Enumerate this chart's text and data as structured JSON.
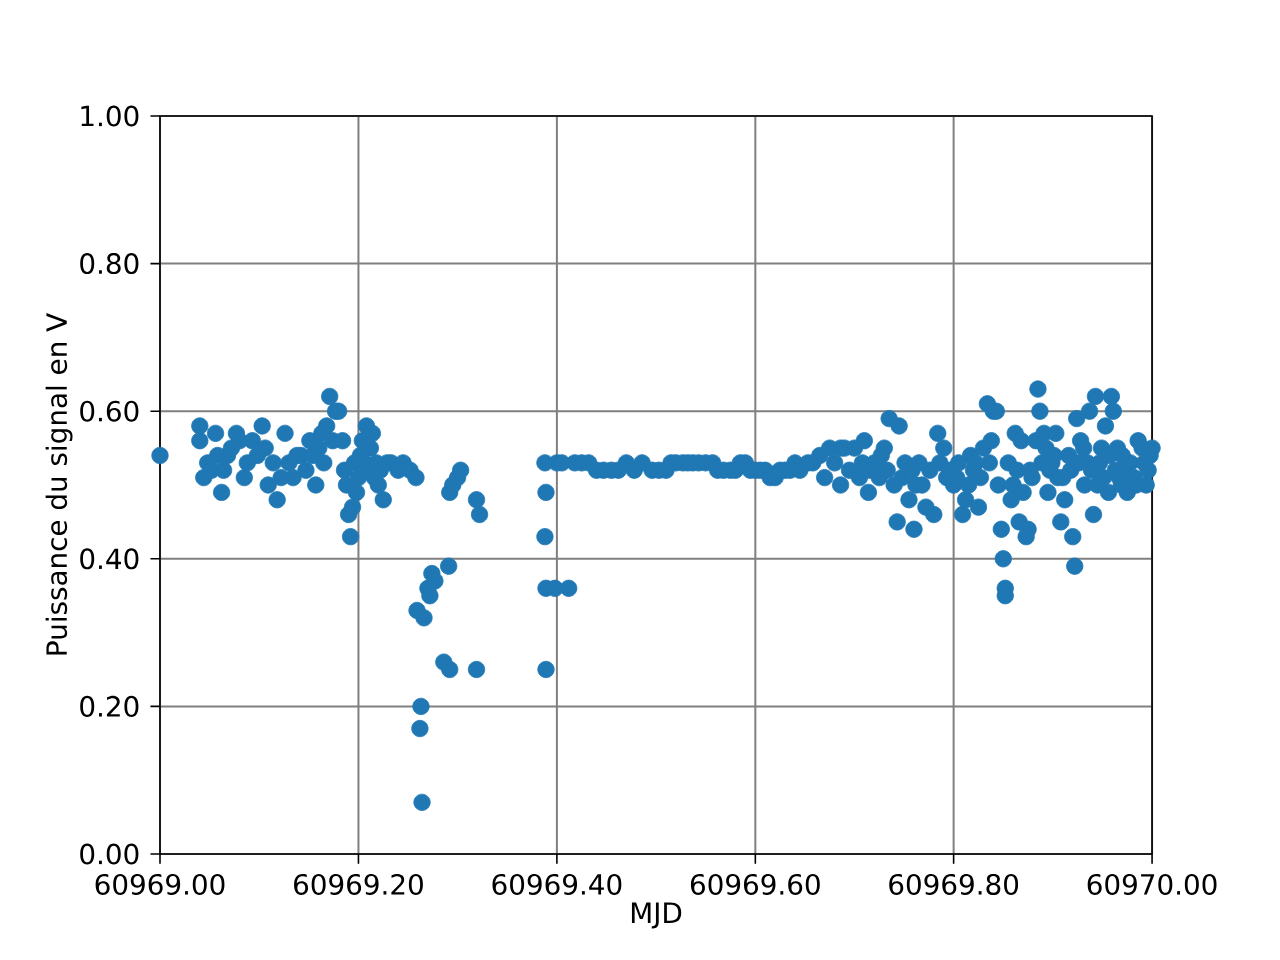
{
  "chart_data": {
    "type": "scatter",
    "xlabel": "MJD",
    "ylabel": "Puissance du signal en V",
    "x": [
      60969.0,
      60969.04,
      60969.04,
      60969.044,
      60969.048,
      60969.052,
      60969.056,
      60969.062,
      60969.068,
      60969.072,
      60969.077,
      60969.085,
      60969.093,
      60969.098,
      60969.103,
      60969.109,
      60969.114,
      60969.118,
      60969.122,
      60969.126,
      60969.134,
      60969.138,
      60969.142,
      60969.147,
      60969.151,
      60969.157,
      60969.163,
      60969.168,
      60969.171,
      60969.174,
      60969.177,
      60969.18,
      60969.184,
      60969.186,
      60969.188,
      60969.19,
      60969.192,
      60969.194,
      60969.196,
      60969.2,
      60969.204,
      60969.208,
      60969.212,
      60969.216,
      60969.22,
      60969.225,
      60969.229,
      60969.233,
      60969.24,
      60969.245,
      60969.252,
      60969.258,
      60969.259,
      60969.262,
      60969.263,
      60969.264,
      60969.266,
      60969.27,
      60969.272,
      60969.274,
      60969.277,
      60969.286,
      60969.291,
      60969.292,
      60969.292,
      60969.295,
      60969.3,
      60969.303,
      60969.319,
      60969.319,
      60969.322,
      60969.388,
      60969.389,
      60969.388,
      60969.389,
      60969.389,
      60969.398,
      60969.4,
      60969.412,
      60969.418,
      60969.425,
      60969.44,
      60969.455,
      60969.47,
      60969.496,
      60969.51,
      60969.52,
      60969.537,
      60969.55,
      60969.562,
      60969.575,
      60969.585,
      60969.595,
      60969.61,
      60969.62,
      60969.63,
      60969.64,
      60969.653,
      60969.665,
      60969.67,
      60969.675,
      60969.686,
      60969.686,
      60969.695,
      60969.7,
      60969.705,
      60969.71,
      60969.714,
      60969.72,
      60969.725,
      60969.73,
      60969.735,
      60969.74,
      60969.743,
      60969.745,
      60969.751,
      60969.755,
      60969.76,
      60969.765,
      60969.768,
      60969.772,
      60969.776,
      60969.78,
      60969.784,
      60969.79,
      60969.793,
      60969.8,
      60969.805,
      60969.809,
      60969.812,
      60969.817,
      60969.82,
      60969.825,
      60969.83,
      60969.834,
      60969.838,
      60969.84,
      60969.843,
      60969.845,
      60969.848,
      60969.85,
      60969.852,
      60969.852,
      60969.855,
      60969.858,
      60969.86,
      60969.862,
      60969.866,
      60969.868,
      60969.87,
      60969.873,
      60969.875,
      60969.879,
      60969.883,
      60969.885,
      60969.887,
      60969.891,
      60969.893,
      60969.895,
      60969.899,
      60969.903,
      60969.905,
      60969.908,
      60969.912,
      60969.916,
      60969.918,
      60969.92,
      60969.922,
      60969.924,
      60969.928,
      60969.932,
      60969.935,
      60969.937,
      60969.941,
      60969.943,
      60969.945,
      60969.949,
      60969.953,
      60969.956,
      60969.959,
      60969.961,
      60969.965,
      60969.969,
      60969.972,
      60969.975,
      60969.978,
      60969.982,
      60969.986,
      60969.99,
      60969.994,
      60969.996,
      60969.998,
      60970.0,
      60969.405,
      60969.432,
      60969.447,
      60969.462,
      60969.478,
      60969.486,
      60969.503,
      60969.515,
      60969.527,
      60969.532,
      60969.543,
      60969.557,
      60969.568,
      60969.58,
      60969.59,
      60969.6,
      60969.605,
      60969.615,
      60969.625,
      60969.635,
      60969.645,
      60969.658,
      60969.058,
      60969.064,
      60969.08,
      60969.088,
      60969.106,
      60969.13,
      60969.154,
      60969.16,
      60969.165,
      60969.198,
      60969.202,
      60969.206,
      60969.21,
      60969.214,
      60969.218,
      60969.222,
      60969.68,
      60969.69,
      60969.708,
      60969.716,
      60969.727,
      60969.733,
      60969.748,
      60969.758,
      60969.762,
      60969.786,
      60969.796,
      60969.803,
      60969.815,
      60969.822,
      60969.827,
      60969.836,
      60969.864,
      60969.877,
      60969.889,
      60969.897,
      60969.901,
      60969.91,
      60969.926,
      60969.931,
      60969.939,
      60969.947,
      60969.951,
      60969.957,
      60969.963,
      60969.967,
      60969.97,
      60969.984,
      60969.992
    ],
    "values": [
      0.54,
      0.58,
      0.56,
      0.51,
      0.53,
      0.52,
      0.57,
      0.49,
      0.54,
      0.55,
      0.57,
      0.51,
      0.56,
      0.54,
      0.58,
      0.5,
      0.53,
      0.48,
      0.51,
      0.57,
      0.51,
      0.54,
      0.54,
      0.52,
      0.56,
      0.5,
      0.57,
      0.58,
      0.62,
      0.56,
      0.6,
      0.6,
      0.56,
      0.52,
      0.5,
      0.46,
      0.43,
      0.47,
      0.53,
      0.51,
      0.56,
      0.58,
      0.55,
      0.51,
      0.5,
      0.48,
      0.53,
      0.53,
      0.52,
      0.53,
      0.52,
      0.51,
      0.33,
      0.17,
      0.2,
      0.07,
      0.32,
      0.36,
      0.35,
      0.38,
      0.37,
      0.26,
      0.39,
      0.49,
      0.25,
      0.5,
      0.51,
      0.52,
      0.25,
      0.48,
      0.46,
      0.53,
      0.49,
      0.43,
      0.36,
      0.25,
      0.36,
      0.53,
      0.36,
      0.53,
      0.53,
      0.52,
      0.52,
      0.53,
      0.52,
      0.52,
      0.53,
      0.53,
      0.53,
      0.52,
      0.52,
      0.53,
      0.52,
      0.52,
      0.51,
      0.52,
      0.53,
      0.53,
      0.54,
      0.51,
      0.55,
      0.55,
      0.5,
      0.52,
      0.55,
      0.51,
      0.56,
      0.49,
      0.53,
      0.51,
      0.55,
      0.59,
      0.5,
      0.45,
      0.58,
      0.53,
      0.48,
      0.44,
      0.53,
      0.5,
      0.47,
      0.52,
      0.46,
      0.57,
      0.55,
      0.51,
      0.5,
      0.53,
      0.46,
      0.48,
      0.54,
      0.52,
      0.47,
      0.55,
      0.61,
      0.56,
      0.6,
      0.6,
      0.5,
      0.44,
      0.4,
      0.36,
      0.35,
      0.53,
      0.48,
      0.5,
      0.57,
      0.45,
      0.56,
      0.49,
      0.43,
      0.44,
      0.51,
      0.56,
      0.63,
      0.6,
      0.57,
      0.55,
      0.49,
      0.53,
      0.57,
      0.51,
      0.45,
      0.48,
      0.54,
      0.52,
      0.43,
      0.39,
      0.59,
      0.56,
      0.5,
      0.53,
      0.6,
      0.46,
      0.62,
      0.5,
      0.55,
      0.58,
      0.49,
      0.62,
      0.6,
      0.55,
      0.5,
      0.52,
      0.49,
      0.53,
      0.51,
      0.56,
      0.55,
      0.5,
      0.52,
      0.54,
      0.55,
      0.53,
      0.53,
      0.52,
      0.52,
      0.52,
      0.53,
      0.52,
      0.53,
      0.53,
      0.53,
      0.53,
      0.53,
      0.52,
      0.52,
      0.53,
      0.52,
      0.52,
      0.51,
      0.52,
      0.52,
      0.52,
      0.53,
      0.54,
      0.52,
      0.56,
      0.53,
      0.55,
      0.53,
      0.54,
      0.55,
      0.53,
      0.49,
      0.54,
      0.53,
      0.52,
      0.57,
      0.53,
      0.52,
      0.53,
      0.55,
      0.53,
      0.52,
      0.54,
      0.52,
      0.51,
      0.52,
      0.5,
      0.53,
      0.52,
      0.51,
      0.5,
      0.53,
      0.51,
      0.53,
      0.52,
      0.52,
      0.53,
      0.52,
      0.54,
      0.51,
      0.53,
      0.55,
      0.52,
      0.53,
      0.51,
      0.54,
      0.52,
      0.51,
      0.54,
      0.5,
      0.53
    ],
    "color": "#1f77b4",
    "marker": "circle",
    "grid": true,
    "xlim": [
      60969.0,
      60970.0
    ],
    "ylim": [
      0.0,
      1.0
    ],
    "xticks": [
      {
        "value": 60969.0,
        "label": "60969.00"
      },
      {
        "value": 60969.2,
        "label": "60969.20"
      },
      {
        "value": 60969.4,
        "label": "60969.40"
      },
      {
        "value": 60969.6,
        "label": "60969.60"
      },
      {
        "value": 60969.8,
        "label": "60969.80"
      },
      {
        "value": 60970.0,
        "label": "60970.00"
      }
    ],
    "yticks": [
      {
        "value": 0.0,
        "label": "0.00"
      },
      {
        "value": 0.2,
        "label": "0.20"
      },
      {
        "value": 0.4,
        "label": "0.40"
      },
      {
        "value": 0.6,
        "label": "0.60"
      },
      {
        "value": 0.8,
        "label": "0.80"
      },
      {
        "value": 1.0,
        "label": "1.00"
      }
    ]
  }
}
